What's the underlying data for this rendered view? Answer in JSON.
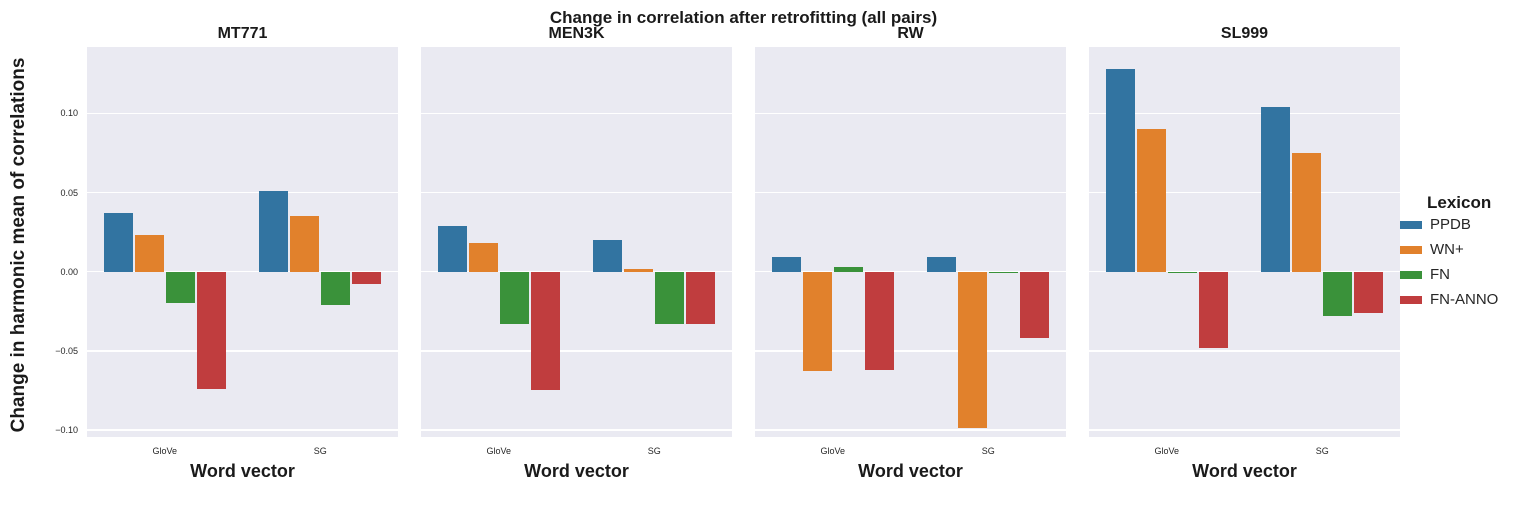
{
  "figure": {
    "title": "Change in correlation after retrofitting (all pairs)"
  },
  "chart_data": {
    "type": "bar",
    "title": "Change in correlation after retrofitting (all pairs)",
    "xlabel": "Word vector",
    "ylabel": "Change in harmonic mean of correlations",
    "categories": [
      "GloVe",
      "SG"
    ],
    "series": [
      {
        "name": "PPDB",
        "color": "#3274a1"
      },
      {
        "name": "WN+",
        "color": "#e1812c"
      },
      {
        "name": "FN",
        "color": "#3a923a"
      },
      {
        "name": "FN-ANNO",
        "color": "#c03d3e"
      }
    ],
    "facets": [
      {
        "title": "MT771",
        "values": {
          "GloVe": [
            0.037,
            0.023,
            -0.02,
            -0.074
          ],
          "SG": [
            0.051,
            0.035,
            -0.021,
            -0.008
          ]
        }
      },
      {
        "title": "MEN3K",
        "values": {
          "GloVe": [
            0.029,
            0.018,
            -0.033,
            -0.075
          ],
          "SG": [
            0.02,
            0.002,
            -0.033,
            -0.033
          ]
        }
      },
      {
        "title": "RW",
        "values": {
          "GloVe": [
            0.009,
            -0.063,
            0.003,
            -0.062
          ],
          "SG": [
            0.009,
            -0.099,
            -0.001,
            -0.042
          ]
        }
      },
      {
        "title": "SL999",
        "values": {
          "GloVe": [
            0.128,
            0.09,
            -0.001,
            -0.048
          ],
          "SG": [
            0.104,
            0.075,
            -0.028,
            -0.026
          ]
        }
      }
    ],
    "ytick_labels": [
      "0.10",
      "0.05",
      "0.00",
      "−0.05",
      "−0.10"
    ],
    "ytick_values": [
      0.1,
      0.05,
      0.0,
      -0.05,
      -0.1
    ],
    "ylim": [
      -0.1045,
      0.142
    ],
    "grid": true,
    "panel_bg": "#eaeaf2",
    "legend": {
      "title": "Lexicon",
      "position": "right"
    }
  }
}
